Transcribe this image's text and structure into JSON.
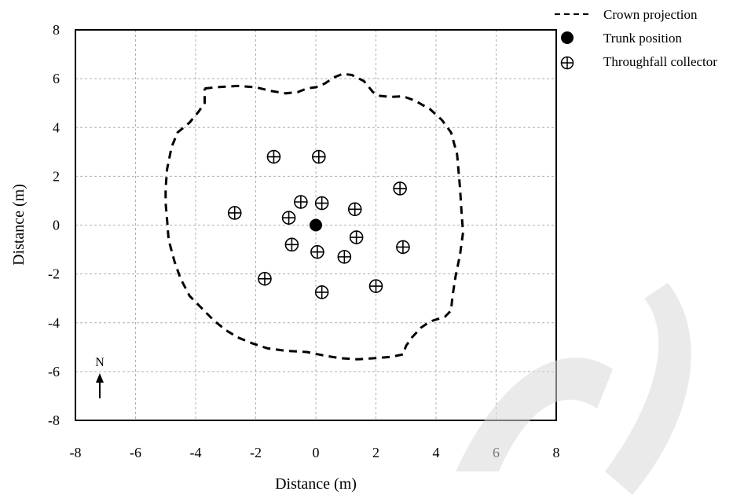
{
  "chart_data": {
    "type": "scatter",
    "xlabel": "Distance (m)",
    "ylabel": "Distance (m)",
    "xlim": [
      -8,
      8
    ],
    "ylim": [
      -8,
      8
    ],
    "xticks": [
      "-8",
      "-6",
      "-4",
      "-2",
      "0",
      "2",
      "4",
      "6",
      "8"
    ],
    "yticks": [
      "8",
      "6",
      "4",
      "2",
      "0",
      "-2",
      "-4",
      "-6",
      "-8"
    ],
    "grid": true,
    "legend_position": "top-right outside",
    "legend": {
      "crown": "Crown projection",
      "trunk": "Trunk position",
      "collector": "Throughfall collector"
    },
    "north_label": "N",
    "trunk": {
      "x": 0.0,
      "y": 0.0
    },
    "collectors": [
      {
        "x": -1.4,
        "y": 2.8
      },
      {
        "x": 0.1,
        "y": 2.8
      },
      {
        "x": 2.8,
        "y": 1.5
      },
      {
        "x": -0.5,
        "y": 0.95
      },
      {
        "x": 0.2,
        "y": 0.9
      },
      {
        "x": 1.3,
        "y": 0.65
      },
      {
        "x": -2.7,
        "y": 0.5
      },
      {
        "x": -0.9,
        "y": 0.3
      },
      {
        "x": 1.35,
        "y": -0.5
      },
      {
        "x": -0.8,
        "y": -0.8
      },
      {
        "x": 0.05,
        "y": -1.1
      },
      {
        "x": 0.95,
        "y": -1.3
      },
      {
        "x": 2.9,
        "y": -0.9
      },
      {
        "x": -1.7,
        "y": -2.2
      },
      {
        "x": 2.0,
        "y": -2.5
      },
      {
        "x": 0.2,
        "y": -2.75
      }
    ],
    "crown_projection": [
      [
        -3.7,
        5.6
      ],
      [
        -3.3,
        5.65
      ],
      [
        -2.6,
        5.7
      ],
      [
        -2.0,
        5.65
      ],
      [
        -1.5,
        5.5
      ],
      [
        -1.0,
        5.4
      ],
      [
        -0.6,
        5.45
      ],
      [
        -0.3,
        5.6
      ],
      [
        0.0,
        5.65
      ],
      [
        0.3,
        5.8
      ],
      [
        0.6,
        6.05
      ],
      [
        0.9,
        6.2
      ],
      [
        1.2,
        6.15
      ],
      [
        1.6,
        5.9
      ],
      [
        1.9,
        5.45
      ],
      [
        2.1,
        5.3
      ],
      [
        2.5,
        5.25
      ],
      [
        2.9,
        5.28
      ],
      [
        3.3,
        5.1
      ],
      [
        3.8,
        4.75
      ],
      [
        4.2,
        4.3
      ],
      [
        4.5,
        3.8
      ],
      [
        4.7,
        2.9
      ],
      [
        4.8,
        1.5
      ],
      [
        4.85,
        0.5
      ],
      [
        4.9,
        -0.3
      ],
      [
        4.8,
        -1.2
      ],
      [
        4.65,
        -2.1
      ],
      [
        4.55,
        -2.9
      ],
      [
        4.5,
        -3.5
      ],
      [
        4.3,
        -3.75
      ],
      [
        3.8,
        -3.95
      ],
      [
        3.5,
        -4.2
      ],
      [
        3.2,
        -4.6
      ],
      [
        3.0,
        -4.95
      ],
      [
        2.9,
        -5.3
      ],
      [
        2.5,
        -5.4
      ],
      [
        2.0,
        -5.45
      ],
      [
        1.4,
        -5.5
      ],
      [
        0.8,
        -5.45
      ],
      [
        0.3,
        -5.35
      ],
      [
        -0.3,
        -5.2
      ],
      [
        -1.0,
        -5.15
      ],
      [
        -1.6,
        -5.05
      ],
      [
        -2.1,
        -4.85
      ],
      [
        -2.6,
        -4.6
      ],
      [
        -3.0,
        -4.3
      ],
      [
        -3.4,
        -3.9
      ],
      [
        -3.8,
        -3.4
      ],
      [
        -4.2,
        -2.9
      ],
      [
        -4.5,
        -2.2
      ],
      [
        -4.7,
        -1.5
      ],
      [
        -4.9,
        -0.6
      ],
      [
        -4.95,
        0.2
      ],
      [
        -5.0,
        0.9
      ],
      [
        -5.0,
        1.5
      ],
      [
        -4.95,
        2.3
      ],
      [
        -4.8,
        3.2
      ],
      [
        -4.6,
        3.8
      ],
      [
        -4.2,
        4.2
      ],
      [
        -3.9,
        4.65
      ],
      [
        -3.7,
        5.0
      ],
      [
        -3.7,
        5.6
      ]
    ]
  }
}
